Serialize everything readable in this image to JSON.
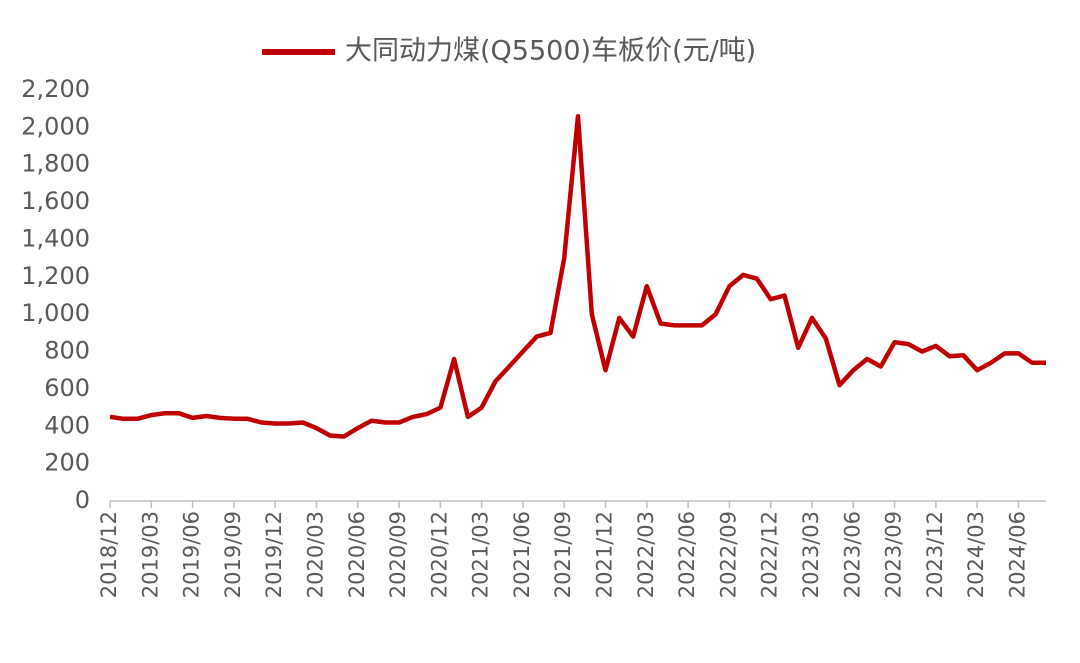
{
  "chart_data": {
    "type": "line",
    "categories": [
      "2018/12",
      null,
      null,
      "2019/03",
      null,
      null,
      "2019/06",
      null,
      null,
      "2019/09",
      null,
      null,
      "2019/12",
      null,
      null,
      "2020/03",
      null,
      null,
      "2020/06",
      null,
      null,
      "2020/09",
      null,
      null,
      "2020/12",
      null,
      null,
      "2021/03",
      null,
      null,
      "2021/06",
      null,
      null,
      "2021/09",
      null,
      null,
      "2021/12",
      null,
      null,
      "2022/03",
      null,
      null,
      "2022/06",
      null,
      null,
      "2022/09",
      null,
      null,
      "2022/12",
      null,
      null,
      "2023/03",
      null,
      null,
      "2023/06",
      null,
      null,
      "2023/09",
      null,
      null,
      "2023/12",
      null,
      null,
      "2024/03",
      null,
      null,
      "2024/06",
      null,
      null
    ],
    "series": [
      {
        "name": "大同动力煤(Q5500)车板价(元/吨)",
        "color": "#c00000",
        "values": [
          450,
          440,
          440,
          460,
          470,
          470,
          445,
          455,
          445,
          440,
          440,
          420,
          415,
          415,
          420,
          390,
          350,
          345,
          390,
          430,
          420,
          420,
          450,
          465,
          500,
          760,
          450,
          500,
          640,
          720,
          800,
          880,
          900,
          1300,
          2060,
          1000,
          700,
          980,
          880,
          1150,
          950,
          940,
          940,
          940,
          1000,
          1150,
          1210,
          1190,
          1080,
          1100,
          820,
          980,
          870,
          620,
          700,
          760,
          720,
          850,
          840,
          800,
          830,
          775,
          780,
          700,
          740,
          790,
          790,
          740,
          740
        ]
      }
    ],
    "ylim": [
      0,
      2200
    ],
    "yticks": [
      0,
      200,
      400,
      600,
      800,
      {
        "value": 1000,
        "label": "1,000"
      },
      {
        "value": 1200,
        "label": "1,200"
      },
      {
        "value": 1400,
        "label": "1,400"
      },
      {
        "value": 1600,
        "label": "1,600"
      },
      {
        "value": 1800,
        "label": "1,800"
      },
      {
        "value": 2000,
        "label": "2,000"
      },
      {
        "value": 2200,
        "label": "2,200"
      }
    ],
    "legend": "top",
    "grid": false
  }
}
